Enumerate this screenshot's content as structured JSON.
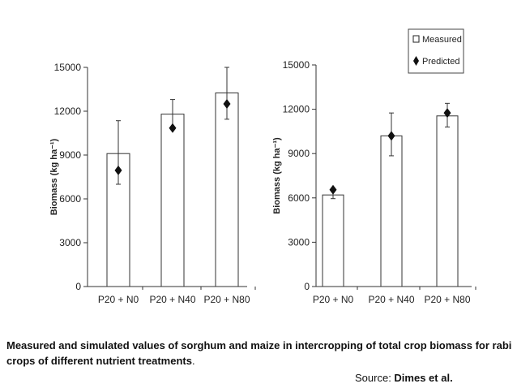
{
  "chart_data": [
    {
      "type": "bar",
      "title": "",
      "xlabel": "",
      "ylabel": "Biomass (kg ha⁻¹)",
      "ylim": [
        0,
        15000
      ],
      "yticks": [
        "0",
        "3000",
        "6000",
        "9000",
        "12000",
        "15000"
      ],
      "categories": [
        "P20 + N0",
        "P20 + N40",
        "P20 + N80"
      ],
      "series": [
        {
          "name": "Measured",
          "values": [
            9100,
            11800,
            13250
          ],
          "error_low": [
            7000,
            10800,
            11450
          ],
          "error_high": [
            11350,
            12800,
            15000
          ]
        },
        {
          "name": "Predicted",
          "values": [
            7950,
            10850,
            12500
          ]
        }
      ],
      "grid": false
    },
    {
      "type": "bar",
      "title": "",
      "xlabel": "",
      "ylabel": "Biomass (kg ha⁻¹)",
      "ylim": [
        0,
        15000
      ],
      "yticks": [
        "0",
        "3000",
        "6000",
        "9000",
        "12000",
        "15000"
      ],
      "categories": [
        "P20 + N0",
        "P20 + N40",
        "P20 + N80"
      ],
      "series": [
        {
          "name": "Measured",
          "values": [
            6200,
            10200,
            11550
          ],
          "error_low": [
            5950,
            8850,
            10800
          ],
          "error_high": [
            6550,
            11750,
            12400
          ]
        },
        {
          "name": "Predicted",
          "values": [
            6550,
            10200,
            11750
          ]
        }
      ],
      "legend": [
        "Measured",
        "Predicted"
      ],
      "legend_position": "top-right",
      "grid": false
    }
  ],
  "caption": {
    "text": "Measured and simulated values of  sorghum and maize in intercropping of total crop biomass for rabi crops of different nutrient  treatments",
    "period": "."
  },
  "source": {
    "prefix": "Source: ",
    "author": "Dimes et al."
  }
}
